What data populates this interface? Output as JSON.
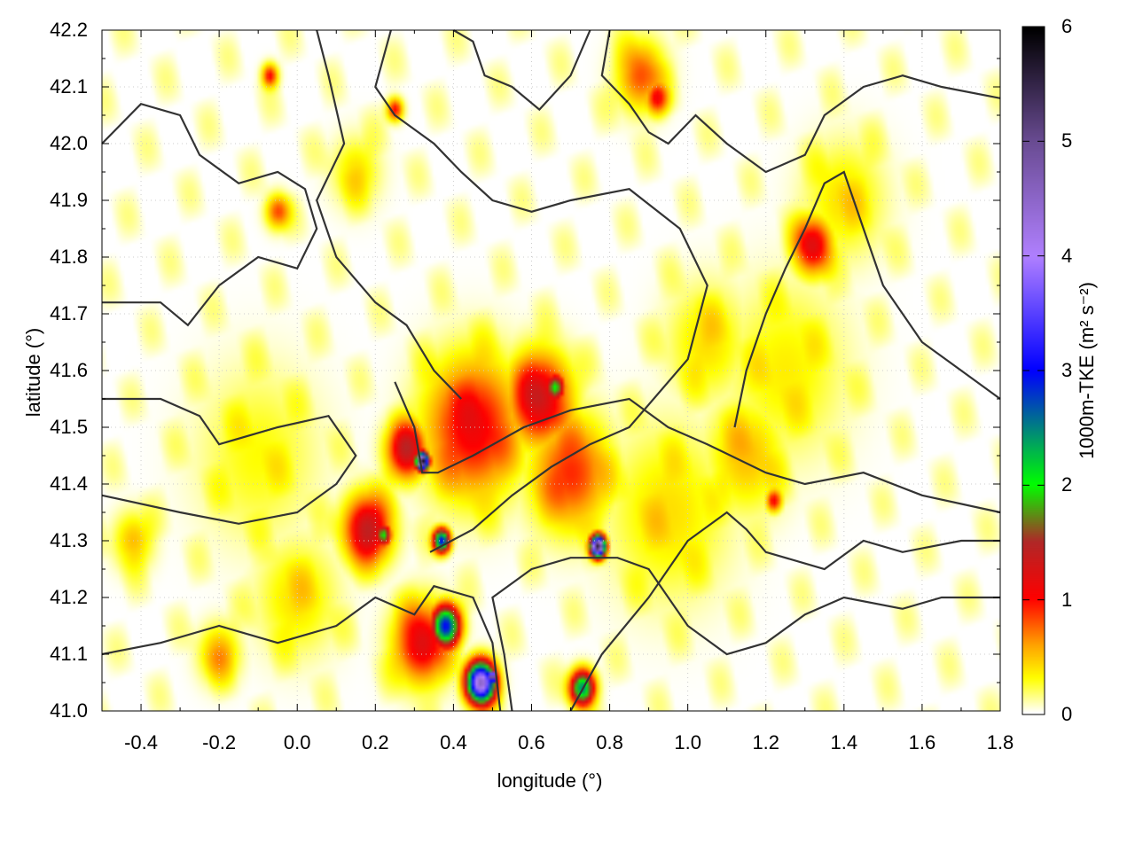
{
  "chart_data": {
    "type": "heatmap",
    "xlabel": "longitude (°)",
    "ylabel": "latitude (°)",
    "colorbar_label": "1000m-TKE (m² s⁻²)",
    "xlim": [
      -0.5,
      1.8
    ],
    "ylim": [
      41.0,
      42.2
    ],
    "clim": [
      0,
      6
    ],
    "grid": true,
    "x_ticks": [
      "-0.4",
      "-0.2",
      "0.0",
      "0.2",
      "0.4",
      "0.6",
      "0.8",
      "1.0",
      "1.2",
      "1.4",
      "1.6",
      "1.8"
    ],
    "y_ticks": [
      "41.0",
      "41.1",
      "41.2",
      "41.3",
      "41.4",
      "41.5",
      "41.6",
      "41.7",
      "41.8",
      "41.9",
      "42.0",
      "42.1",
      "42.2"
    ],
    "colorbar_ticks": [
      "0",
      "1",
      "2",
      "3",
      "4",
      "5",
      "6"
    ],
    "colormap": [
      [
        0,
        "#ffffff"
      ],
      [
        0.3,
        "#ffff00"
      ],
      [
        0.6,
        "#ffa000"
      ],
      [
        1,
        "#ff0000"
      ],
      [
        1.5,
        "#b02828"
      ],
      [
        2,
        "#00ff00"
      ],
      [
        2.5,
        "#008080"
      ],
      [
        3,
        "#0000ff"
      ],
      [
        4,
        "#b080ff"
      ],
      [
        5,
        "#6a4c93"
      ],
      [
        6,
        "#000000"
      ]
    ],
    "hotspots": [
      {
        "lon": 0.45,
        "lat": 41.5,
        "tke": 1.1,
        "r": 0.12
      },
      {
        "lon": 0.62,
        "lat": 41.55,
        "tke": 1.3,
        "r": 0.08
      },
      {
        "lon": 0.66,
        "lat": 41.57,
        "tke": 2.0,
        "r": 0.025
      },
      {
        "lon": 0.7,
        "lat": 41.42,
        "tke": 0.9,
        "r": 0.1
      },
      {
        "lon": 0.28,
        "lat": 41.46,
        "tke": 1.4,
        "r": 0.05
      },
      {
        "lon": 0.32,
        "lat": 41.44,
        "tke": 6.0,
        "r": 0.015
      },
      {
        "lon": 0.18,
        "lat": 41.32,
        "tke": 1.4,
        "r": 0.06
      },
      {
        "lon": 0.22,
        "lat": 41.31,
        "tke": 2.0,
        "r": 0.02
      },
      {
        "lon": 0.37,
        "lat": 41.3,
        "tke": 3.0,
        "r": 0.02
      },
      {
        "lon": 0.77,
        "lat": 41.29,
        "tke": 5.5,
        "r": 0.018
      },
      {
        "lon": 0.38,
        "lat": 41.15,
        "tke": 3.0,
        "r": 0.035
      },
      {
        "lon": 0.32,
        "lat": 41.12,
        "tke": 1.2,
        "r": 0.07
      },
      {
        "lon": 0.47,
        "lat": 41.05,
        "tke": 4.5,
        "r": 0.035
      },
      {
        "lon": 0.5,
        "lat": 41.06,
        "tke": 6.0,
        "r": 0.01
      },
      {
        "lon": 0.73,
        "lat": 41.04,
        "tke": 2.5,
        "r": 0.03
      },
      {
        "lon": 1.32,
        "lat": 41.82,
        "tke": 1.2,
        "r": 0.05
      },
      {
        "lon": 0.88,
        "lat": 42.12,
        "tke": 0.8,
        "r": 0.06
      },
      {
        "lon": 0.92,
        "lat": 42.08,
        "tke": 1.0,
        "r": 0.03
      },
      {
        "lon": -0.07,
        "lat": 42.12,
        "tke": 1.0,
        "r": 0.02
      },
      {
        "lon": 0.25,
        "lat": 42.06,
        "tke": 1.0,
        "r": 0.02
      },
      {
        "lon": -0.2,
        "lat": 41.1,
        "tke": 0.6,
        "r": 0.05
      },
      {
        "lon": 0.95,
        "lat": 41.35,
        "tke": 0.4,
        "r": 0.15
      },
      {
        "lon": 1.15,
        "lat": 41.45,
        "tke": 0.5,
        "r": 0.1
      },
      {
        "lon": 1.05,
        "lat": 41.65,
        "tke": 0.4,
        "r": 0.1
      },
      {
        "lon": 1.25,
        "lat": 41.6,
        "tke": 0.35,
        "r": 0.15
      },
      {
        "lon": 1.22,
        "lat": 41.37,
        "tke": 1.0,
        "r": 0.02
      },
      {
        "lon": -0.1,
        "lat": 41.45,
        "tke": 0.3,
        "r": 0.15
      },
      {
        "lon": 0.0,
        "lat": 41.2,
        "tke": 0.4,
        "r": 0.1
      },
      {
        "lon": -0.05,
        "lat": 41.88,
        "tke": 0.8,
        "r": 0.03
      },
      {
        "lon": 0.15,
        "lat": 41.95,
        "tke": 0.4,
        "r": 0.06
      },
      {
        "lon": 1.4,
        "lat": 41.9,
        "tke": 0.4,
        "r": 0.1
      },
      {
        "lon": -0.42,
        "lat": 41.3,
        "tke": 0.5,
        "r": 0.05
      }
    ],
    "contours": [
      [
        [
          -0.5,
          42.0
        ],
        [
          -0.4,
          42.07
        ],
        [
          -0.3,
          42.05
        ],
        [
          -0.25,
          41.98
        ],
        [
          -0.15,
          41.93
        ],
        [
          -0.05,
          41.95
        ],
        [
          0.02,
          41.92
        ],
        [
          0.05,
          41.85
        ],
        [
          0.0,
          41.78
        ],
        [
          -0.1,
          41.8
        ],
        [
          -0.2,
          41.75
        ],
        [
          -0.28,
          41.68
        ],
        [
          -0.35,
          41.72
        ],
        [
          -0.5,
          41.72
        ]
      ],
      [
        [
          -0.5,
          41.55
        ],
        [
          -0.35,
          41.55
        ],
        [
          -0.25,
          41.52
        ],
        [
          -0.2,
          41.47
        ],
        [
          -0.05,
          41.5
        ],
        [
          0.08,
          41.52
        ],
        [
          0.15,
          41.45
        ],
        [
          0.1,
          41.4
        ],
        [
          0.0,
          41.35
        ],
        [
          -0.15,
          41.33
        ],
        [
          -0.3,
          41.35
        ],
        [
          -0.5,
          41.38
        ]
      ],
      [
        [
          -0.5,
          41.1
        ],
        [
          -0.35,
          41.12
        ],
        [
          -0.2,
          41.15
        ],
        [
          -0.05,
          41.12
        ],
        [
          0.1,
          41.15
        ],
        [
          0.2,
          41.2
        ],
        [
          0.3,
          41.17
        ],
        [
          0.35,
          41.22
        ],
        [
          0.45,
          41.2
        ],
        [
          0.5,
          41.12
        ],
        [
          0.52,
          41.0
        ]
      ],
      [
        [
          0.25,
          41.58
        ],
        [
          0.3,
          41.5
        ],
        [
          0.32,
          41.42
        ],
        [
          0.36,
          41.42
        ],
        [
          0.45,
          41.45
        ],
        [
          0.58,
          41.5
        ],
        [
          0.7,
          41.53
        ],
        [
          0.85,
          41.55
        ],
        [
          0.95,
          41.5
        ],
        [
          1.05,
          41.47
        ],
        [
          1.2,
          41.42
        ],
        [
          1.3,
          41.4
        ],
        [
          1.45,
          41.42
        ],
        [
          1.6,
          41.38
        ],
        [
          1.8,
          41.35
        ]
      ],
      [
        [
          0.34,
          41.28
        ],
        [
          0.45,
          41.32
        ],
        [
          0.55,
          41.38
        ],
        [
          0.65,
          41.43
        ],
        [
          0.75,
          41.47
        ],
        [
          0.85,
          41.5
        ],
        [
          1.0,
          41.62
        ],
        [
          1.05,
          41.75
        ],
        [
          0.98,
          41.85
        ],
        [
          0.85,
          41.92
        ],
        [
          0.7,
          41.9
        ],
        [
          0.6,
          41.88
        ],
        [
          0.5,
          41.9
        ],
        [
          0.42,
          41.95
        ],
        [
          0.35,
          42.0
        ],
        [
          0.25,
          42.05
        ],
        [
          0.2,
          42.1
        ],
        [
          0.24,
          42.2
        ]
      ],
      [
        [
          0.55,
          41.0
        ],
        [
          0.53,
          41.1
        ],
        [
          0.5,
          41.2
        ],
        [
          0.6,
          41.25
        ],
        [
          0.7,
          41.27
        ],
        [
          0.82,
          41.27
        ],
        [
          0.9,
          41.25
        ],
        [
          1.0,
          41.15
        ],
        [
          1.1,
          41.1
        ],
        [
          1.2,
          41.12
        ],
        [
          1.3,
          41.17
        ],
        [
          1.4,
          41.2
        ],
        [
          1.55,
          41.18
        ],
        [
          1.65,
          41.2
        ],
        [
          1.8,
          41.2
        ]
      ],
      [
        [
          0.7,
          41.0
        ],
        [
          0.78,
          41.1
        ],
        [
          0.9,
          41.2
        ],
        [
          1.0,
          41.3
        ],
        [
          1.1,
          41.35
        ],
        [
          1.15,
          41.32
        ],
        [
          1.2,
          41.28
        ],
        [
          1.35,
          41.25
        ],
        [
          1.45,
          41.3
        ],
        [
          1.55,
          41.28
        ],
        [
          1.7,
          41.3
        ],
        [
          1.8,
          41.3
        ]
      ],
      [
        [
          0.8,
          42.2
        ],
        [
          0.78,
          42.12
        ],
        [
          0.85,
          42.07
        ],
        [
          0.9,
          42.02
        ],
        [
          0.95,
          42.0
        ],
        [
          1.02,
          42.05
        ],
        [
          1.1,
          42.0
        ],
        [
          1.2,
          41.95
        ],
        [
          1.3,
          41.98
        ],
        [
          1.35,
          42.05
        ],
        [
          1.45,
          42.1
        ],
        [
          1.55,
          42.12
        ],
        [
          1.65,
          42.1
        ],
        [
          1.8,
          42.08
        ]
      ],
      [
        [
          1.8,
          41.55
        ],
        [
          1.7,
          41.6
        ],
        [
          1.6,
          41.65
        ],
        [
          1.5,
          41.75
        ],
        [
          1.45,
          41.85
        ],
        [
          1.4,
          41.95
        ],
        [
          1.35,
          41.93
        ],
        [
          1.3,
          41.85
        ],
        [
          1.25,
          41.78
        ],
        [
          1.2,
          41.7
        ],
        [
          1.15,
          41.6
        ],
        [
          1.12,
          41.5
        ]
      ],
      [
        [
          0.75,
          42.2
        ],
        [
          0.7,
          42.12
        ],
        [
          0.62,
          42.06
        ],
        [
          0.55,
          42.1
        ],
        [
          0.48,
          42.12
        ],
        [
          0.45,
          42.18
        ],
        [
          0.4,
          42.2
        ]
      ],
      [
        [
          0.05,
          42.2
        ],
        [
          0.08,
          42.12
        ],
        [
          0.12,
          42.0
        ],
        [
          0.05,
          41.9
        ],
        [
          0.1,
          41.8
        ],
        [
          0.2,
          41.72
        ],
        [
          0.28,
          41.68
        ],
        [
          0.35,
          41.6
        ],
        [
          0.42,
          41.55
        ]
      ]
    ]
  }
}
